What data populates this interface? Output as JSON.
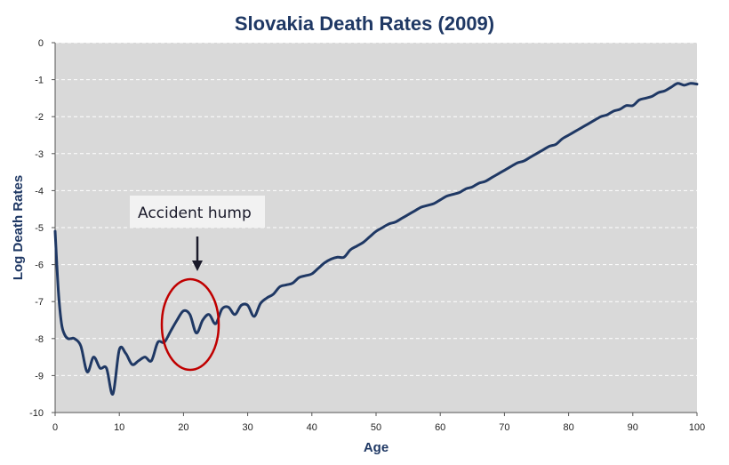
{
  "chart_data": {
    "type": "line",
    "title": "Slovakia Death Rates (2009)",
    "xlabel": "Age",
    "ylabel": "Log Death Rates",
    "xlim": [
      0,
      100
    ],
    "ylim": [
      -10,
      0
    ],
    "x_ticks": [
      "0",
      "10",
      "20",
      "30",
      "40",
      "50",
      "60",
      "70",
      "80",
      "90",
      "100"
    ],
    "y_ticks": [
      "0",
      "-1",
      "-2",
      "-3",
      "-4",
      "-5",
      "-6",
      "-7",
      "-8",
      "-9",
      "-10"
    ],
    "grid": "horizontal dashed",
    "colors": {
      "line": "#1f3864",
      "plot_bg": "#d9d9d9",
      "title": "#1f3864",
      "axis_title": "#1f3864",
      "circle": "#c00000",
      "arrow": "#1a1a2a"
    },
    "annotations": [
      {
        "text": "Accident hump",
        "x": 22,
        "y": -7.6
      }
    ],
    "series": [
      {
        "x": [
          0,
          0.5,
          1,
          1.5,
          2,
          2.5,
          3,
          4,
          5,
          6,
          7,
          8,
          9,
          10,
          11,
          12,
          13,
          14,
          15,
          16,
          17,
          18,
          19,
          20,
          21,
          22,
          23,
          24,
          25,
          26,
          27,
          28,
          29,
          30,
          31,
          32,
          33,
          34,
          35,
          36,
          37,
          38,
          39,
          40,
          41,
          42,
          43,
          44,
          45,
          46,
          47,
          48,
          49,
          50,
          51,
          52,
          53,
          54,
          55,
          56,
          57,
          58,
          59,
          60,
          61,
          62,
          63,
          64,
          65,
          66,
          67,
          68,
          69,
          70,
          71,
          72,
          73,
          74,
          75,
          76,
          77,
          78,
          79,
          80,
          81,
          82,
          83,
          84,
          85,
          86,
          87,
          88,
          89,
          90,
          91,
          92,
          93,
          94,
          95,
          96,
          97,
          98,
          99,
          100
        ],
        "values": [
          -5.1,
          -6.7,
          -7.6,
          -7.9,
          -8.0,
          -8.0,
          -8.0,
          -8.2,
          -8.9,
          -8.5,
          -8.8,
          -8.8,
          -9.5,
          -8.3,
          -8.4,
          -8.7,
          -8.6,
          -8.5,
          -8.6,
          -8.1,
          -8.1,
          -7.8,
          -7.5,
          -7.25,
          -7.35,
          -7.85,
          -7.5,
          -7.35,
          -7.6,
          -7.2,
          -7.15,
          -7.35,
          -7.1,
          -7.1,
          -7.4,
          -7.05,
          -6.9,
          -6.8,
          -6.6,
          -6.55,
          -6.5,
          -6.35,
          -6.3,
          -6.25,
          -6.1,
          -5.95,
          -5.85,
          -5.8,
          -5.8,
          -5.6,
          -5.5,
          -5.4,
          -5.25,
          -5.1,
          -5.0,
          -4.9,
          -4.85,
          -4.75,
          -4.65,
          -4.55,
          -4.45,
          -4.4,
          -4.35,
          -4.25,
          -4.15,
          -4.1,
          -4.05,
          -3.95,
          -3.9,
          -3.8,
          -3.75,
          -3.65,
          -3.55,
          -3.45,
          -3.35,
          -3.25,
          -3.2,
          -3.1,
          -3.0,
          -2.9,
          -2.8,
          -2.75,
          -2.6,
          -2.5,
          -2.4,
          -2.3,
          -2.2,
          -2.1,
          -2.0,
          -1.95,
          -1.85,
          -1.8,
          -1.7,
          -1.7,
          -1.55,
          -1.5,
          -1.45,
          -1.35,
          -1.3,
          -1.2,
          -1.1,
          -1.15,
          -1.1,
          -1.12
        ]
      }
    ]
  }
}
